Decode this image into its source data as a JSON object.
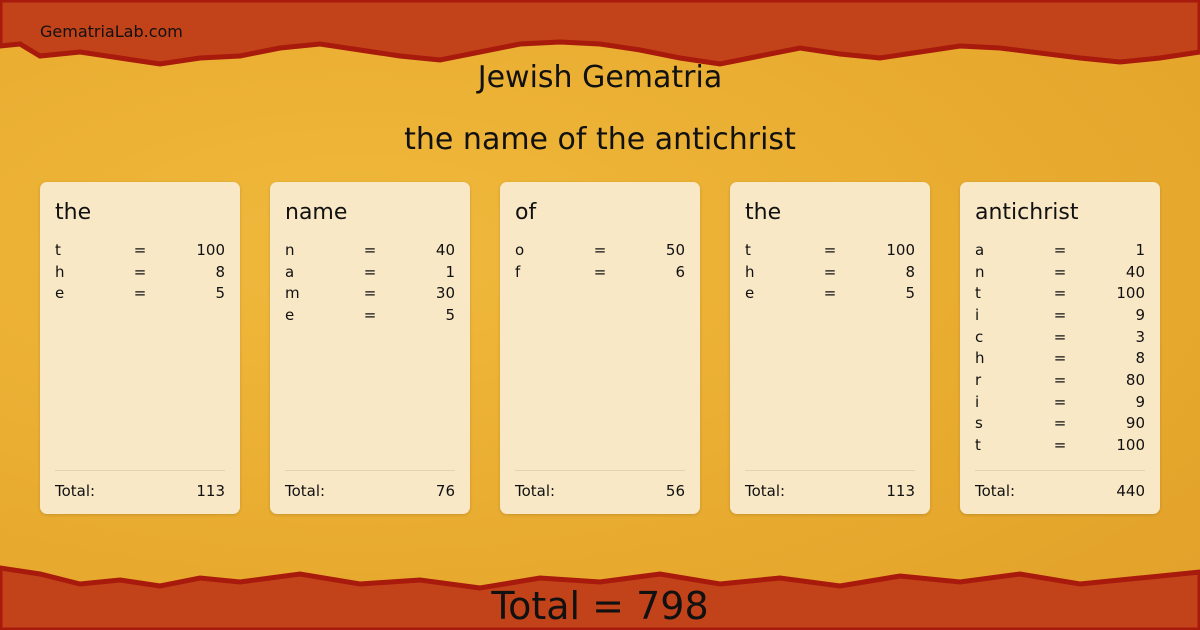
{
  "site": "GematriaLab.com",
  "title": "Jewish Gematria",
  "phrase": "the name of the antichrist",
  "total_label": "Total:",
  "eq": "=",
  "words": [
    {
      "word": "the",
      "letters": [
        [
          "t",
          "100"
        ],
        [
          "h",
          "8"
        ],
        [
          "e",
          "5"
        ]
      ],
      "total": "113"
    },
    {
      "word": "name",
      "letters": [
        [
          "n",
          "40"
        ],
        [
          "a",
          "1"
        ],
        [
          "m",
          "30"
        ],
        [
          "e",
          "5"
        ]
      ],
      "total": "76"
    },
    {
      "word": "of",
      "letters": [
        [
          "o",
          "50"
        ],
        [
          "f",
          "6"
        ]
      ],
      "total": "56"
    },
    {
      "word": "the",
      "letters": [
        [
          "t",
          "100"
        ],
        [
          "h",
          "8"
        ],
        [
          "e",
          "5"
        ]
      ],
      "total": "113"
    },
    {
      "word": "antichrist",
      "letters": [
        [
          "a",
          "1"
        ],
        [
          "n",
          "40"
        ],
        [
          "t",
          "100"
        ],
        [
          "i",
          "9"
        ],
        [
          "c",
          "3"
        ],
        [
          "h",
          "8"
        ],
        [
          "r",
          "80"
        ],
        [
          "i",
          "9"
        ],
        [
          "s",
          "90"
        ],
        [
          "t",
          "100"
        ]
      ],
      "total": "440"
    }
  ],
  "grand_total": "Total = 798",
  "colors": {
    "top_band": "#c2421a",
    "edge": "#a81a0c",
    "paper": "#e9ae33",
    "card": "#f9e8c6"
  }
}
